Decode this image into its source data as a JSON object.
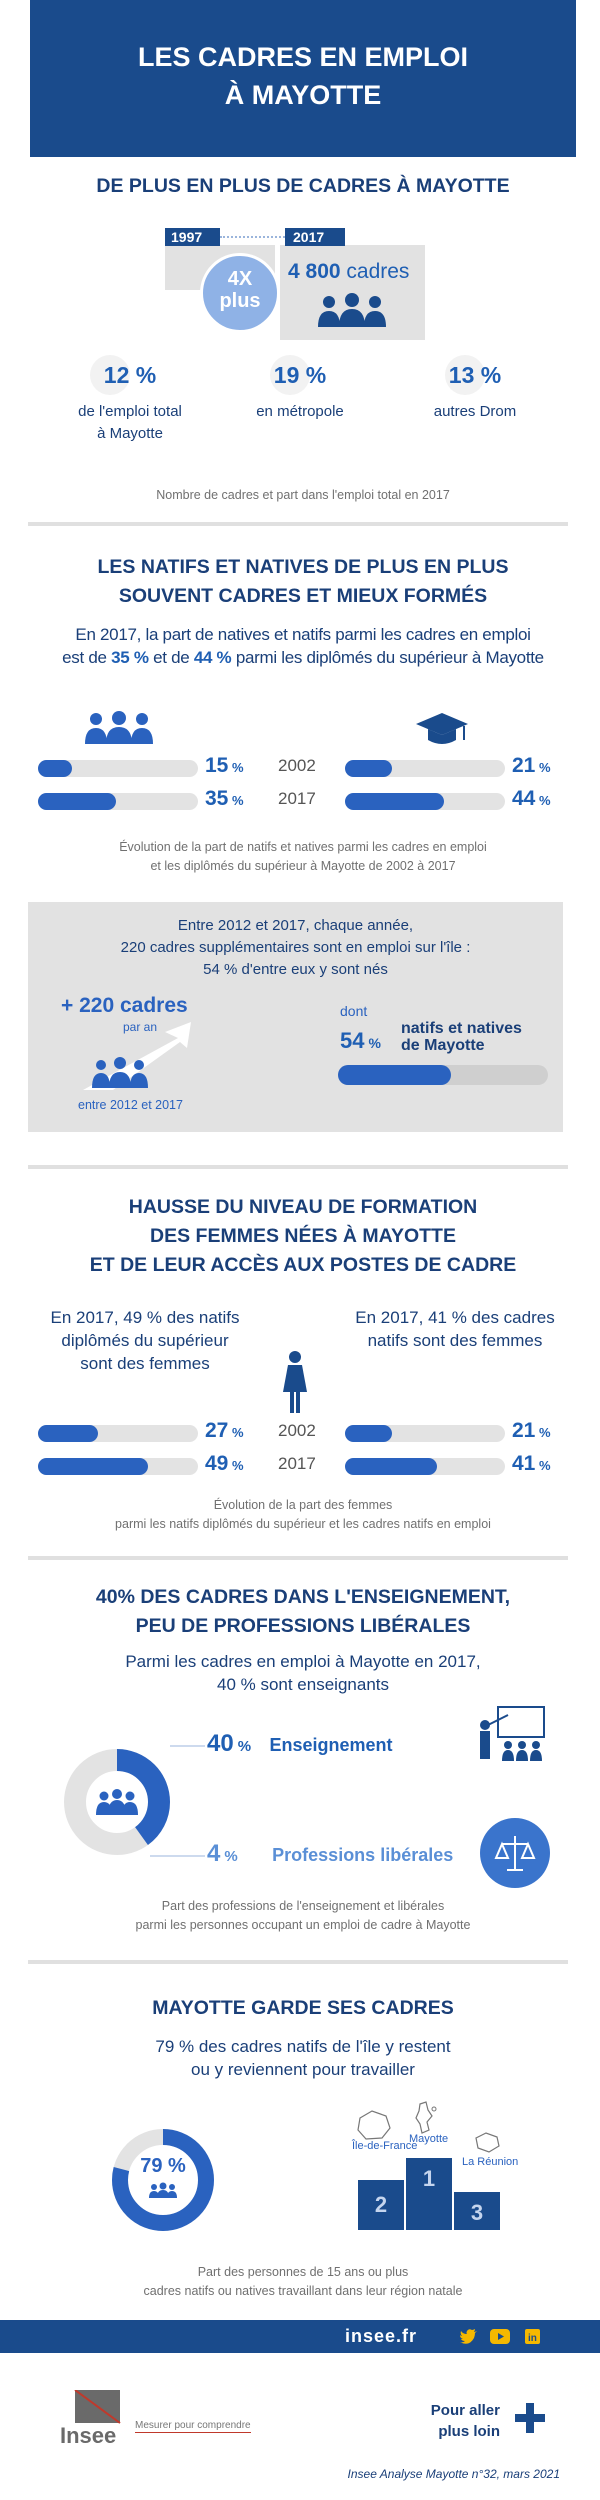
{
  "header": {
    "title_line1": "LES CADRES EN EMPLOI",
    "title_line2": "À MAYOTTE"
  },
  "s1": {
    "title": "DE PLUS EN PLUS DE CADRES À MAYOTTE",
    "year_start": "1997",
    "year_end": "2017",
    "multiplier_top": "4X",
    "multiplier_bottom": "plus",
    "count_number": "4 800",
    "count_unit": "cadres",
    "stats": [
      {
        "value": "12 %",
        "label_line1": "de l'emploi total",
        "label_line2": "à Mayotte"
      },
      {
        "value": "19 %",
        "label_line1": "en métropole",
        "label_line2": ""
      },
      {
        "value": "13 %",
        "label_line1": "autres Drom",
        "label_line2": ""
      }
    ],
    "caption": "Nombre de cadres et part dans l'emploi total en 2017"
  },
  "s2": {
    "title_line1": "LES NATIFS ET NATIVES DE PLUS EN PLUS",
    "title_line2": "SOUVENT CADRES ET MIEUX FORMÉS",
    "intro_line1": "En 2017, la part de natives et natifs parmi les cadres en emploi",
    "intro_line2_a": "est de ",
    "intro_line2_b": "35 %",
    "intro_line2_c": " et de ",
    "intro_line2_d": "44 %",
    "intro_line2_e": " parmi les diplômés du supérieur à Mayotte",
    "rows": [
      {
        "year": "2002",
        "left_value": "15",
        "right_value": "21",
        "left_fraction": 0.15,
        "right_fraction": 0.21
      },
      {
        "year": "2017",
        "left_value": "35",
        "right_value": "44",
        "left_fraction": 0.35,
        "right_fraction": 0.44
      }
    ],
    "pct_sign": "%",
    "caption_line1": "Évolution de la part de natifs et natives parmi les cadres en emploi",
    "caption_line2": "et les diplômés du supérieur à Mayotte de 2002 à 2017",
    "box": {
      "line1": "Entre 2012 et 2017, chaque année,",
      "line2": "220 cadres supplémentaires sont en emploi sur l'île :",
      "line3": "54 % d'entre eux y sont nés",
      "big_value": "+ 220 cadres",
      "per_year": "par an",
      "period": "entre 2012 et 2017",
      "dont": "dont",
      "native_value": "54",
      "native_pct": "%",
      "native_label_line1": "natifs et natives",
      "native_label_line2": "de Mayotte",
      "native_fraction": 0.54
    }
  },
  "s3": {
    "title_line1": "HAUSSE DU NIVEAU DE FORMATION",
    "title_line2": "DES FEMMES NÉES À MAYOTTE",
    "title_line3": "ET DE LEUR ACCÈS AUX POSTES DE CADRE",
    "left_text_line1": "En 2017, 49 % des natifs",
    "left_text_line2": "diplômés du supérieur",
    "left_text_line3": "sont des femmes",
    "right_text_line1": "En 2017, 41 % des cadres",
    "right_text_line2": "natifs sont des femmes",
    "rows": [
      {
        "year": "2002",
        "left_value": "27",
        "right_value": "21",
        "left_fraction": 0.27,
        "right_fraction": 0.21
      },
      {
        "year": "2017",
        "left_value": "49",
        "right_value": "41",
        "left_fraction": 0.49,
        "right_fraction": 0.41
      }
    ],
    "caption_line1": "Évolution de la part des femmes",
    "caption_line2": "parmi les natifs diplômés du supérieur et les cadres natifs en emploi"
  },
  "s4": {
    "title_line1": "40% DES CADRES DANS L'ENSEIGNEMENT,",
    "title_line2": "PEU DE PROFESSIONS LIBÉRALES",
    "intro_line1": "Parmi les cadres en emploi à Mayotte en 2017,",
    "intro_line2": "40 % sont enseignants",
    "item1_value": "40",
    "item1_label": "Enseignement",
    "item1_fraction": 0.4,
    "item2_value": "4",
    "item2_label": "Professions libérales",
    "caption_line1": "Part des professions de l'enseignement et libérales",
    "caption_line2": "parmi les personnes occupant un emploi de cadre à Mayotte"
  },
  "s5": {
    "title": "MAYOTTE GARDE SES CADRES",
    "intro_line1": "79 % des cadres natifs de l'île y restent",
    "intro_line2": "ou y reviennent pour travailler",
    "donut_value": "79 %",
    "donut_fraction": 0.79,
    "podium": [
      {
        "rank": "1",
        "label": "Mayotte"
      },
      {
        "rank": "2",
        "label": "Île-de-France"
      },
      {
        "rank": "3",
        "label": "La Réunion"
      }
    ],
    "caption_line1": "Part des personnes de 15 ans ou plus",
    "caption_line2": "cadres natifs ou natives travaillant dans leur région natale"
  },
  "footer": {
    "site": "insee.fr",
    "logo_text": "Insee",
    "tagline": "Mesurer pour comprendre",
    "more_line1": "Pour aller",
    "more_line2": "plus loin",
    "reference": "Insee Analyse Mayotte n°32, mars 2021"
  },
  "colors": {
    "navy": "#1a4b8c",
    "blue": "#2a62bf",
    "light_blue": "#8fb2e6",
    "grey": "#e2e2e2"
  }
}
